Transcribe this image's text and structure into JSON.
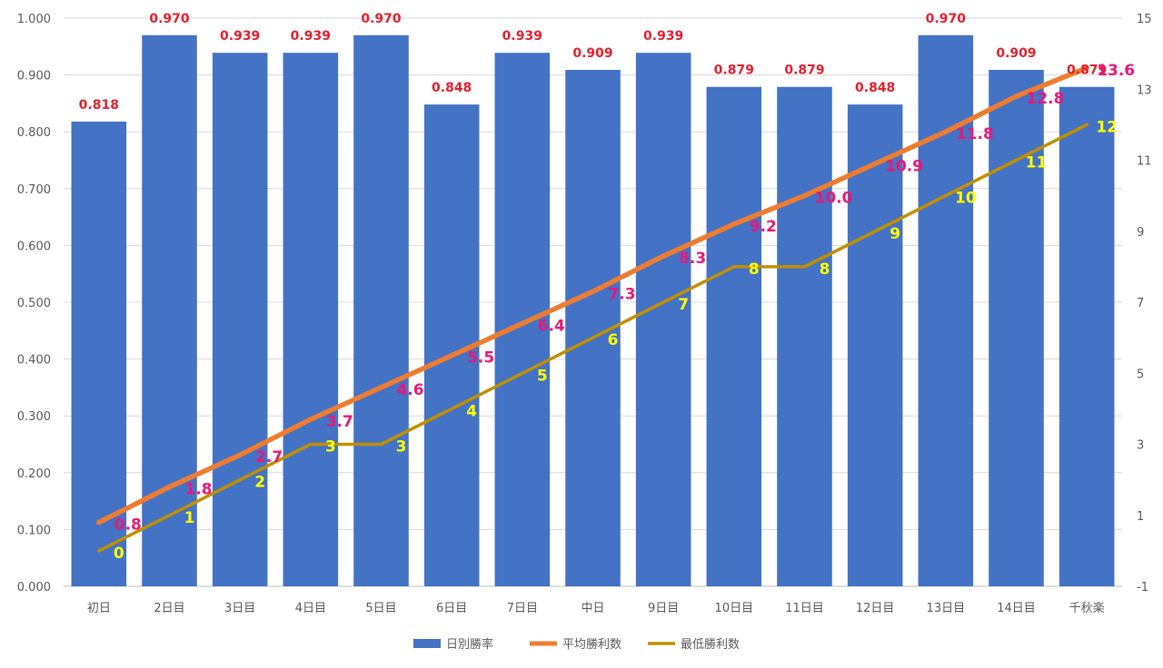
{
  "chart_data": {
    "type": "bar",
    "categories": [
      "初日",
      "2日目",
      "3日目",
      "4日目",
      "5日目",
      "6日目",
      "7日目",
      "中日",
      "9日目",
      "10日目",
      "11日目",
      "12日目",
      "13日目",
      "14日目",
      "千秋楽"
    ],
    "series": [
      {
        "name": "日別勝率",
        "type": "bar",
        "axis": "left",
        "color": "#4472c4",
        "values": [
          0.818,
          0.97,
          0.939,
          0.939,
          0.97,
          0.848,
          0.939,
          0.909,
          0.939,
          0.879,
          0.879,
          0.848,
          0.97,
          0.909,
          0.879
        ],
        "labels": [
          "0.818",
          "0.970",
          "0.939",
          "0.939",
          "0.970",
          "0.848",
          "0.939",
          "0.909",
          "0.939",
          "0.879",
          "0.879",
          "0.848",
          "0.970",
          "0.909",
          "0.879"
        ]
      },
      {
        "name": "平均勝利数",
        "type": "line",
        "axis": "right",
        "color": "#ed7d31",
        "values": [
          0.8,
          1.8,
          2.7,
          3.7,
          4.6,
          5.5,
          6.4,
          7.3,
          8.3,
          9.2,
          10.0,
          10.9,
          11.8,
          12.8,
          13.6
        ],
        "labels": [
          "0.8",
          "1.8",
          "2.7",
          "3.7",
          "4.6",
          "5.5",
          "6.4",
          "7.3",
          "8.3",
          "9.2",
          "10.0",
          "10.9",
          "11.8",
          "12.8",
          "13.6"
        ]
      },
      {
        "name": "最低勝利数",
        "type": "line",
        "axis": "right",
        "color": "#bf9000",
        "values": [
          0,
          1,
          2,
          3,
          3,
          4,
          5,
          6,
          7,
          8,
          8,
          9,
          10,
          11,
          12
        ],
        "labels": [
          "0",
          "1",
          "2",
          "3",
          "3",
          "4",
          "5",
          "6",
          "7",
          "8",
          "8",
          "9",
          "10",
          "11",
          "12"
        ]
      }
    ],
    "y_left": {
      "min": 0,
      "max": 1,
      "ticks": [
        "0.000",
        "0.100",
        "0.200",
        "0.300",
        "0.400",
        "0.500",
        "0.600",
        "0.700",
        "0.800",
        "0.900",
        "1.000"
      ]
    },
    "y_right": {
      "min": -1,
      "max": 15,
      "tick_values": [
        -1,
        1,
        3,
        5,
        7,
        9,
        11,
        13,
        15
      ],
      "ticks": [
        "-1",
        "1",
        "3",
        "5",
        "7",
        "9",
        "11",
        "13",
        "15"
      ]
    },
    "grid": true,
    "legend": "bottom",
    "title": "",
    "xlabel": "",
    "ylabel": ""
  }
}
